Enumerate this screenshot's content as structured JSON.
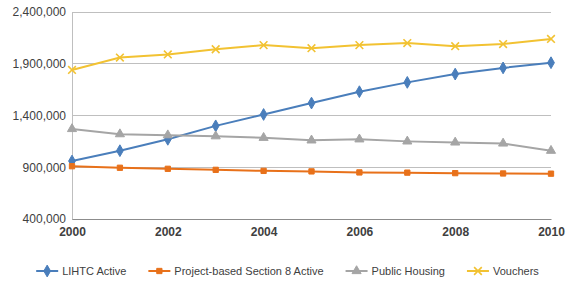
{
  "chart_data": {
    "type": "line",
    "x": [
      2000,
      2001,
      2002,
      2003,
      2004,
      2005,
      2006,
      2007,
      2008,
      2009,
      2010
    ],
    "xlim": [
      2000,
      2010
    ],
    "xticks": [
      2000,
      2002,
      2004,
      2006,
      2008,
      2010
    ],
    "ylim": [
      400000,
      2400000
    ],
    "yticks": [
      {
        "value": 400000,
        "label": "400,000"
      },
      {
        "value": 900000,
        "label": "900,000"
      },
      {
        "value": 1400000,
        "label": "1,400,000"
      },
      {
        "value": 1900000,
        "label": "1,900,000"
      },
      {
        "value": 2400000,
        "label": "2,400,000"
      }
    ],
    "grid": true,
    "legend": "bottom",
    "series": [
      {
        "name": "LIHTC Active",
        "color": "#4a7ebb",
        "marker": "diamond",
        "values": [
          960000,
          1060000,
          1170000,
          1300000,
          1410000,
          1520000,
          1630000,
          1720000,
          1800000,
          1860000,
          1910000
        ]
      },
      {
        "name": "Project-based Section 8 Active",
        "color": "#e8711a",
        "marker": "square",
        "values": [
          910000,
          895000,
          885000,
          875000,
          865000,
          860000,
          850000,
          848000,
          843000,
          840000,
          838000
        ]
      },
      {
        "name": "Public Housing",
        "color": "#a5a5a5",
        "marker": "triangle",
        "values": [
          1270000,
          1220000,
          1210000,
          1200000,
          1185000,
          1160000,
          1170000,
          1150000,
          1140000,
          1130000,
          1060000
        ]
      },
      {
        "name": "Vouchers",
        "color": "#f2c232",
        "marker": "x",
        "values": [
          1840000,
          1960000,
          1990000,
          2040000,
          2080000,
          2050000,
          2080000,
          2100000,
          2070000,
          2090000,
          2140000
        ]
      }
    ]
  }
}
